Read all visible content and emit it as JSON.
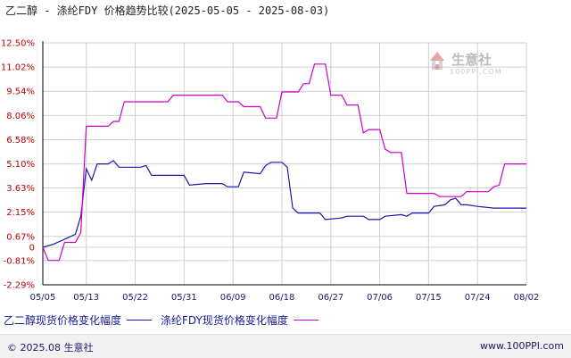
{
  "title": "乙二醇 - 涤纶FDY 价格趋势比较(2025-05-05 - 2025-08-03)",
  "watermark": {
    "name": "生意社",
    "url": "100PPI.COM"
  },
  "footer": {
    "left": "© 2025.08 生意社",
    "right": "www.100PPI.com"
  },
  "colors": {
    "series1": "#1a1aaa",
    "series2": "#cc00cc",
    "axis": "#000000",
    "grid": "#d0d0d0",
    "ytick": "#c00000",
    "xtick": "#1a1a66"
  },
  "chart_data": {
    "type": "line",
    "title": "乙二醇 - 涤纶FDY 价格趋势比较(2025-05-05 - 2025-08-03)",
    "xlabel": "",
    "ylabel": "",
    "y_ticks": [
      "12.50%",
      "11.02%",
      "9.54%",
      "8.06%",
      "6.58%",
      "5.10%",
      "3.63%",
      "2.15%",
      "0.67%",
      "0",
      "-0.81%",
      "-2.29%"
    ],
    "y_tick_values": [
      12.5,
      11.02,
      9.54,
      8.06,
      6.58,
      5.1,
      3.63,
      2.15,
      0.67,
      0,
      -0.81,
      -2.29
    ],
    "ylim": [
      -2.29,
      12.5
    ],
    "x_ticks": [
      "05/05",
      "05/13",
      "05/22",
      "05/31",
      "06/09",
      "06/18",
      "06/27",
      "07/06",
      "07/15",
      "07/24",
      "08/02"
    ],
    "x_tick_values": [
      0,
      8,
      17,
      26,
      35,
      44,
      53,
      62,
      71,
      80,
      89
    ],
    "x_range": [
      0,
      89
    ],
    "grid": true,
    "legend_position": "bottom",
    "series": [
      {
        "name": "乙二醇现货价格变化幅度",
        "points": [
          [
            0,
            0
          ],
          [
            2,
            0.2
          ],
          [
            4,
            0.5
          ],
          [
            6,
            0.8
          ],
          [
            7,
            1.9
          ],
          [
            8,
            4.8
          ],
          [
            9,
            4.1
          ],
          [
            10,
            5.1
          ],
          [
            12,
            5.1
          ],
          [
            13,
            5.3
          ],
          [
            14,
            4.9
          ],
          [
            18,
            4.9
          ],
          [
            19,
            5.0
          ],
          [
            20,
            4.4
          ],
          [
            26,
            4.4
          ],
          [
            27,
            3.8
          ],
          [
            30,
            3.9
          ],
          [
            33,
            3.9
          ],
          [
            34,
            3.7
          ],
          [
            36,
            3.7
          ],
          [
            37,
            4.6
          ],
          [
            40,
            4.5
          ],
          [
            41,
            5.0
          ],
          [
            42,
            5.2
          ],
          [
            44,
            5.2
          ],
          [
            45,
            4.9
          ],
          [
            46,
            2.4
          ],
          [
            47,
            2.1
          ],
          [
            51,
            2.1
          ],
          [
            52,
            1.7
          ],
          [
            55,
            1.8
          ],
          [
            56,
            1.9
          ],
          [
            59,
            1.9
          ],
          [
            60,
            1.7
          ],
          [
            62,
            1.7
          ],
          [
            63,
            1.9
          ],
          [
            66,
            2.0
          ],
          [
            67,
            1.9
          ],
          [
            68,
            2.1
          ],
          [
            71,
            2.1
          ],
          [
            72,
            2.5
          ],
          [
            74,
            2.6
          ],
          [
            75,
            2.9
          ],
          [
            76,
            3.0
          ],
          [
            77,
            2.6
          ],
          [
            78,
            2.6
          ],
          [
            80,
            2.5
          ],
          [
            83,
            2.4
          ],
          [
            89,
            2.4
          ]
        ]
      },
      {
        "name": "涤纶FDY现货价格变化幅度",
        "points": [
          [
            0,
            0
          ],
          [
            1,
            -0.8
          ],
          [
            3,
            -0.8
          ],
          [
            4,
            0.3
          ],
          [
            6,
            0.3
          ],
          [
            7,
            0.9
          ],
          [
            8,
            7.4
          ],
          [
            12,
            7.4
          ],
          [
            13,
            7.7
          ],
          [
            14,
            7.7
          ],
          [
            15,
            8.9
          ],
          [
            23,
            8.9
          ],
          [
            24,
            9.3
          ],
          [
            33,
            9.3
          ],
          [
            34,
            8.9
          ],
          [
            36,
            8.9
          ],
          [
            37,
            8.6
          ],
          [
            40,
            8.6
          ],
          [
            41,
            7.9
          ],
          [
            43,
            7.9
          ],
          [
            44,
            9.5
          ],
          [
            47,
            9.5
          ],
          [
            48,
            10.0
          ],
          [
            49,
            10.0
          ],
          [
            50,
            11.2
          ],
          [
            52,
            11.2
          ],
          [
            53,
            9.3
          ],
          [
            55,
            9.3
          ],
          [
            56,
            8.7
          ],
          [
            58,
            8.7
          ],
          [
            59,
            7.0
          ],
          [
            60,
            7.2
          ],
          [
            62,
            7.2
          ],
          [
            63,
            6.0
          ],
          [
            64,
            5.8
          ],
          [
            66,
            5.8
          ],
          [
            67,
            3.3
          ],
          [
            72,
            3.3
          ],
          [
            73,
            3.1
          ],
          [
            77,
            3.1
          ],
          [
            78,
            3.4
          ],
          [
            82,
            3.4
          ],
          [
            83,
            3.7
          ],
          [
            84,
            3.8
          ],
          [
            85,
            5.1
          ],
          [
            89,
            5.1
          ]
        ]
      }
    ]
  }
}
